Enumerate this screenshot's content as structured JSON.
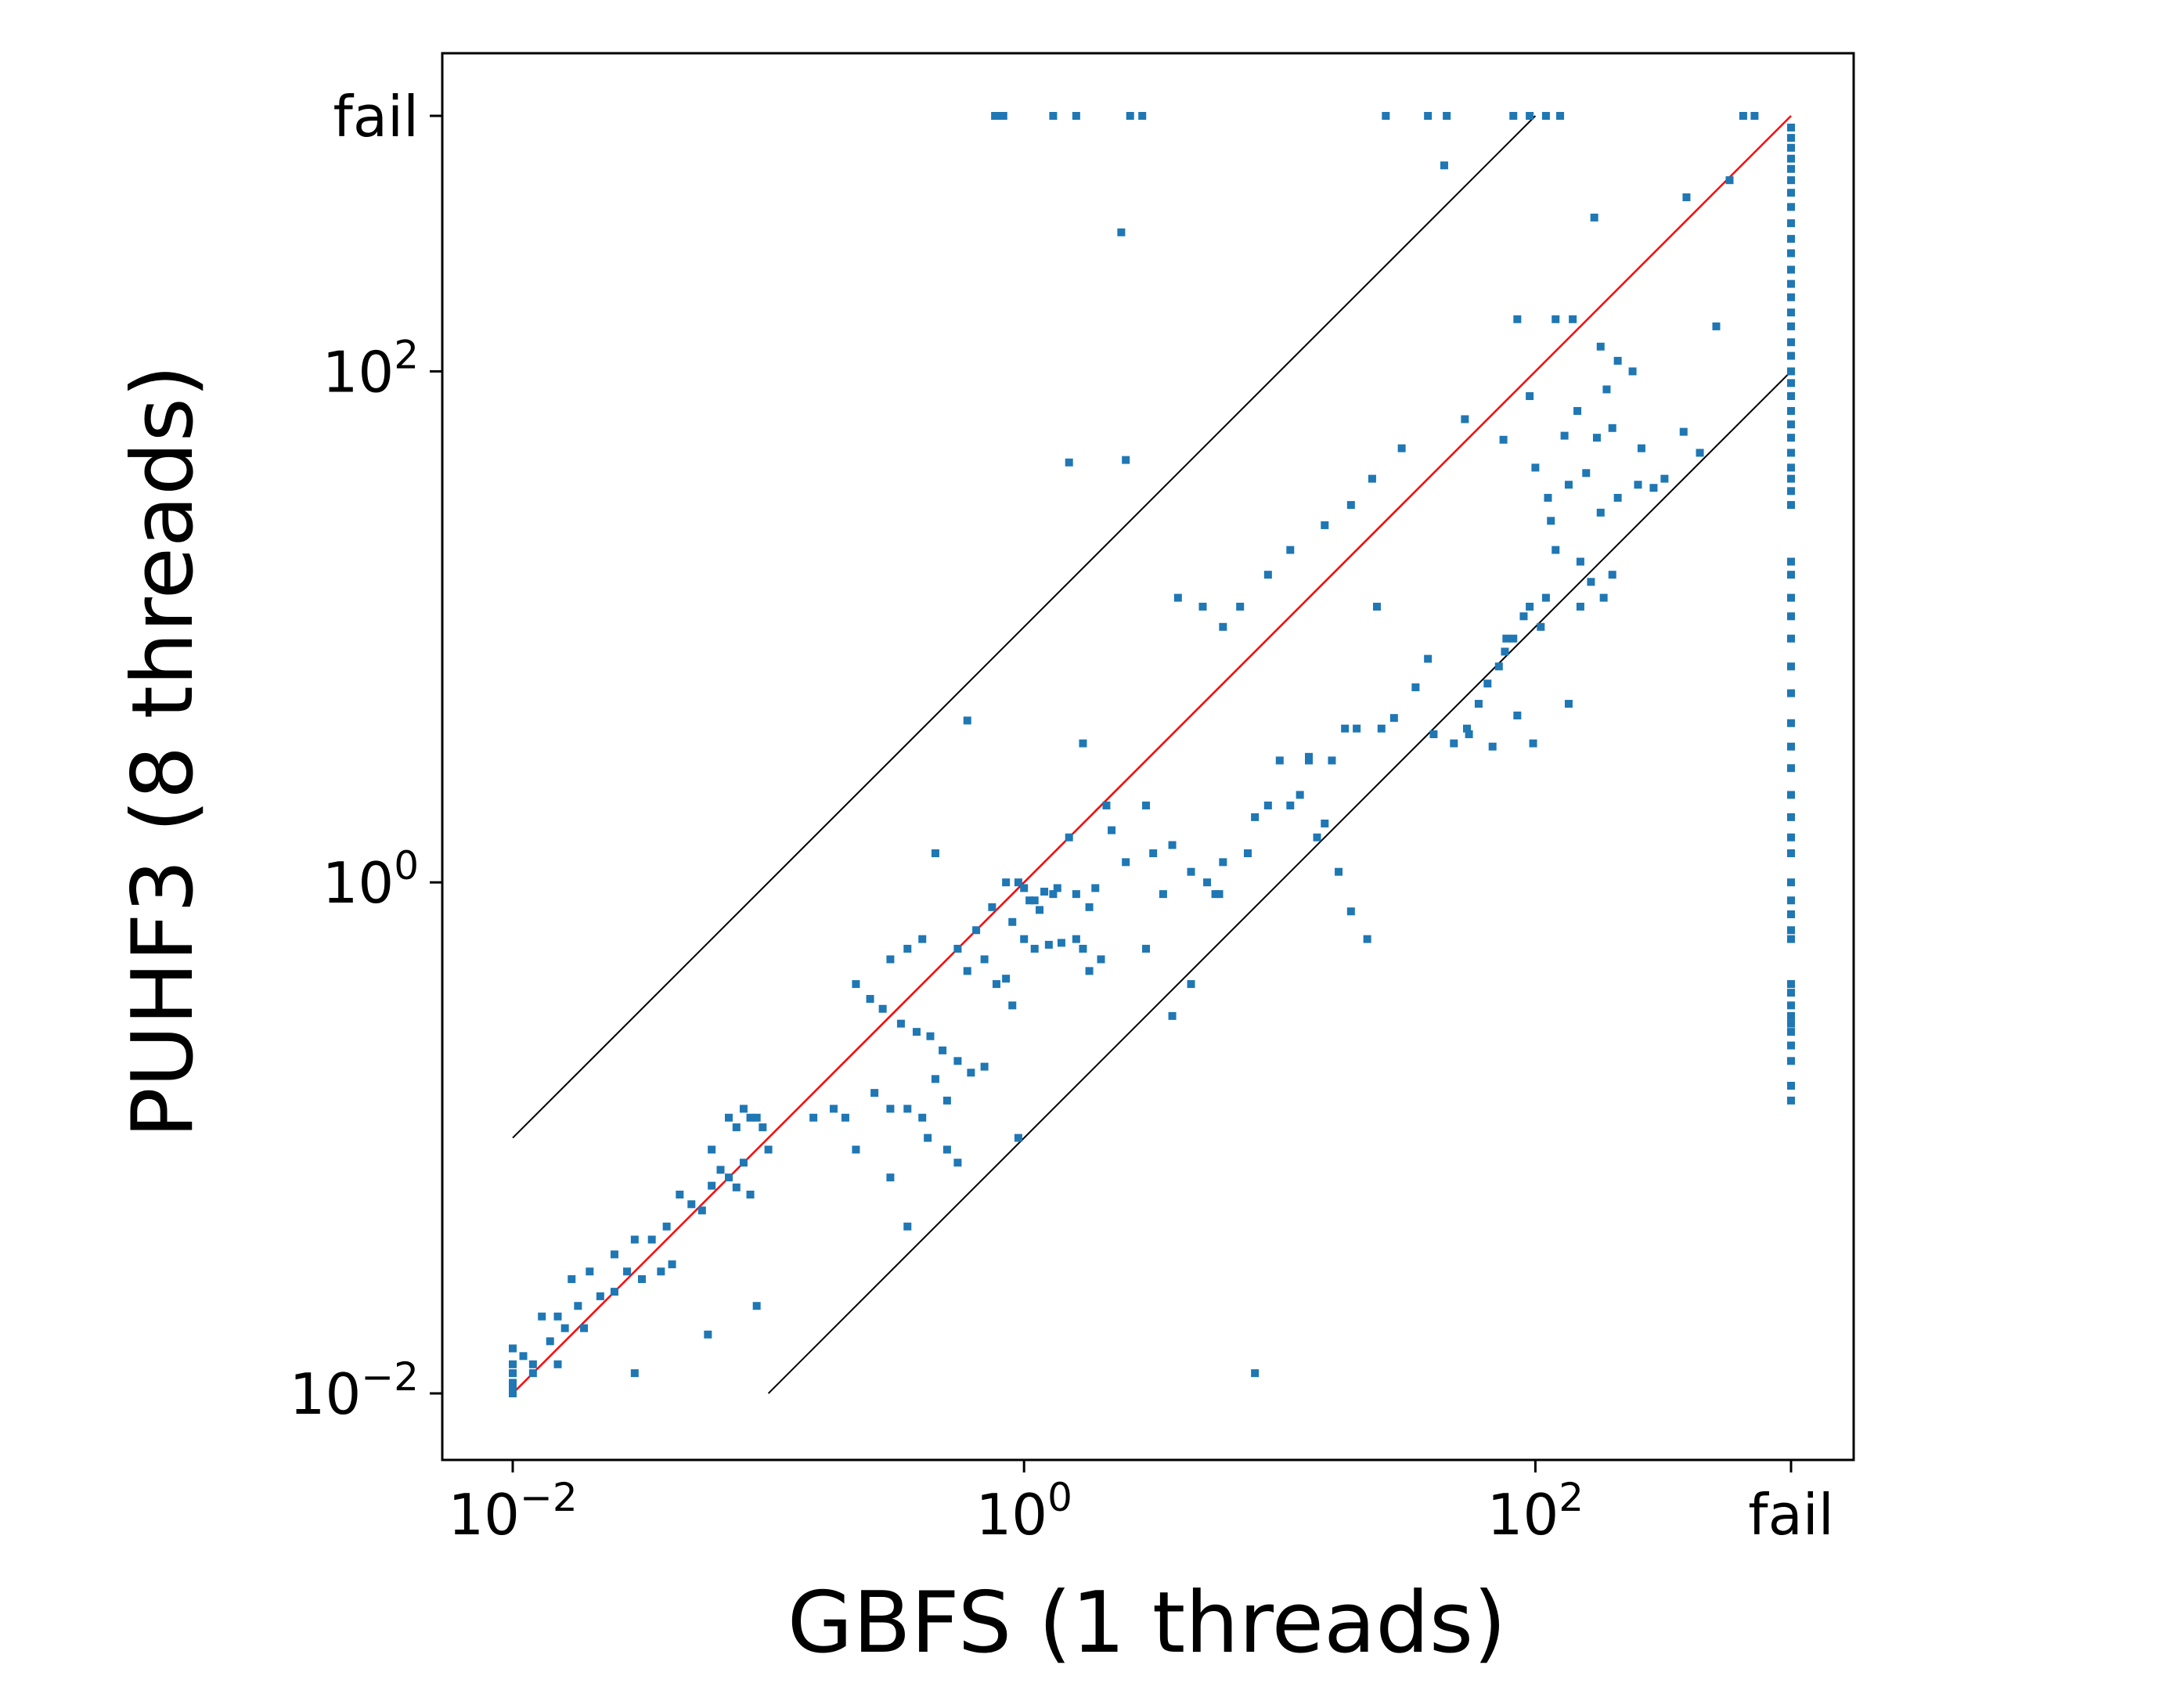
{
  "chart_data": {
    "type": "scatter",
    "title": "",
    "xlabel": "GBFS (1 threads)",
    "ylabel": "PUHF3 (8 threads)",
    "x_scale": "log",
    "y_scale": "log",
    "xlim": [
      0.0055,
      3000
    ],
    "ylim": [
      0.0055,
      3000
    ],
    "fail_value": 1000,
    "x_ticks": [
      {
        "value": 0.01,
        "base": "10",
        "exp": "−2"
      },
      {
        "value": 1,
        "base": "10",
        "exp": "0"
      },
      {
        "value": 100,
        "base": "10",
        "exp": "2"
      },
      {
        "value": 1000,
        "text": "fail"
      }
    ],
    "y_ticks": [
      {
        "value": 0.01,
        "base": "10",
        "exp": "−2"
      },
      {
        "value": 1,
        "base": "10",
        "exp": "0"
      },
      {
        "value": 100,
        "base": "10",
        "exp": "2"
      },
      {
        "value": 1000,
        "text": "fail"
      }
    ],
    "reference_lines": [
      {
        "label": "",
        "color": "#ff0000",
        "points": [
          [
            0.01,
            0.01
          ],
          [
            1000,
            1000
          ]
        ]
      },
      {
        "label": "",
        "color": "#000000",
        "points": [
          [
            0.01,
            0.1
          ],
          [
            100,
            1000
          ]
        ]
      },
      {
        "label": "",
        "color": "#000000",
        "points": [
          [
            0.1,
            0.01
          ],
          [
            1000,
            100
          ]
        ]
      }
    ],
    "series": [
      {
        "color": "#1f77b4",
        "points": [
          [
            0.77,
            1000
          ],
          [
            0.8,
            1000
          ],
          [
            0.83,
            1000
          ],
          [
            1.3,
            1000
          ],
          [
            1.6,
            1000
          ],
          [
            2.6,
            1000
          ],
          [
            2.9,
            1000
          ],
          [
            26,
            1000
          ],
          [
            38,
            1000
          ],
          [
            45,
            1000
          ],
          [
            82,
            1000
          ],
          [
            95,
            1000
          ],
          [
            110,
            1000
          ],
          [
            125,
            1000
          ],
          [
            650,
            1000
          ],
          [
            720,
            1000
          ],
          [
            2.4,
            350
          ],
          [
            44,
            640
          ],
          [
            170,
            400
          ],
          [
            390,
            480
          ],
          [
            575,
            560
          ],
          [
            1.5,
            44
          ],
          [
            2.5,
            45
          ],
          [
            85,
            160
          ],
          [
            140,
            160
          ],
          [
            120,
            160
          ],
          [
            180,
            125
          ],
          [
            210,
            110
          ],
          [
            190,
            85
          ],
          [
            240,
            100
          ],
          [
            510,
            150
          ],
          [
            53,
            65
          ],
          [
            30,
            50
          ],
          [
            23,
            38
          ],
          [
            19,
            30
          ],
          [
            15,
            25
          ],
          [
            11,
            20
          ],
          [
            9,
            16
          ],
          [
            7,
            12
          ],
          [
            6,
            10
          ],
          [
            75,
            54
          ],
          [
            100,
            42
          ],
          [
            112,
            32
          ],
          [
            115,
            26
          ],
          [
            135,
            36
          ],
          [
            158,
            40
          ],
          [
            180,
            28
          ],
          [
            210,
            32
          ],
          [
            252,
            36
          ],
          [
            290,
            35
          ],
          [
            95,
            80
          ],
          [
            130,
            56
          ],
          [
            146,
            70
          ],
          [
            174,
            55
          ],
          [
            200,
            60
          ],
          [
            260,
            50
          ],
          [
            320,
            38
          ],
          [
            380,
            58
          ],
          [
            440,
            48
          ],
          [
            165,
            15
          ],
          [
            120,
            20
          ],
          [
            150,
            18
          ],
          [
            110,
            13
          ],
          [
            95,
            12
          ],
          [
            82,
            9
          ],
          [
            76,
            8
          ],
          [
            72,
            7
          ],
          [
            65,
            6
          ],
          [
            60,
            5
          ],
          [
            54,
            4
          ],
          [
            200,
            16
          ],
          [
            185,
            13
          ],
          [
            150,
            12
          ],
          [
            105,
            10
          ],
          [
            90,
            11
          ],
          [
            77,
            9
          ],
          [
            135,
            5
          ],
          [
            20,
            4
          ],
          [
            16,
            3
          ],
          [
            38,
            7.5
          ],
          [
            34,
            5.8
          ],
          [
            28,
            4.4
          ],
          [
            25,
            4
          ],
          [
            40,
            3.8
          ],
          [
            48,
            3.5
          ],
          [
            55,
            3.8
          ],
          [
            68,
            3.4
          ],
          [
            85,
            4.5
          ],
          [
            98,
            3.5
          ],
          [
            4.0,
            13
          ],
          [
            5.0,
            12
          ],
          [
            24,
            12
          ],
          [
            18,
            4
          ],
          [
            13,
            3
          ],
          [
            9,
            2
          ],
          [
            8,
            1.8
          ],
          [
            7.5,
            1.3
          ],
          [
            6,
            1.2
          ],
          [
            5.6,
            0.9
          ],
          [
            13,
            3.1
          ],
          [
            11,
            2
          ],
          [
            10,
            3
          ],
          [
            12,
            2.2
          ],
          [
            14,
            1.5
          ],
          [
            15,
            1.7
          ],
          [
            17,
            1.1
          ],
          [
            19,
            0.77
          ],
          [
            22,
            0.6
          ],
          [
            2.1,
            2
          ],
          [
            3,
            2
          ],
          [
            2.2,
            1.6
          ],
          [
            2.5,
            1.2
          ],
          [
            3.2,
            1.3
          ],
          [
            3.8,
            1.4
          ],
          [
            4.5,
            1.1
          ],
          [
            5.2,
            1.0
          ],
          [
            5.8,
            0.9
          ],
          [
            1.5,
            1.5
          ],
          [
            1.9,
            0.95
          ],
          [
            1.6,
            0.9
          ],
          [
            1.3,
            0.9
          ],
          [
            1.05,
            0.85
          ],
          [
            1.2,
            0.92
          ],
          [
            1.35,
            0.95
          ],
          [
            1.8,
            0.8
          ],
          [
            1.7,
            3.5
          ],
          [
            0.6,
            4.3
          ],
          [
            0.45,
            1.3
          ],
          [
            0.85,
            1.0
          ],
          [
            0.95,
            1.0
          ],
          [
            1.0,
            0.95
          ],
          [
            1.1,
            0.85
          ],
          [
            1.15,
            0.78
          ],
          [
            0.9,
            0.7
          ],
          [
            1.0,
            0.6
          ],
          [
            1.1,
            0.55
          ],
          [
            1.25,
            0.57
          ],
          [
            1.4,
            0.58
          ],
          [
            1.6,
            0.6
          ],
          [
            1.8,
            0.45
          ],
          [
            2.0,
            0.5
          ],
          [
            0.75,
            0.8
          ],
          [
            0.65,
            0.65
          ],
          [
            0.55,
            0.55
          ],
          [
            0.6,
            0.45
          ],
          [
            0.7,
            0.5
          ],
          [
            0.78,
            0.4
          ],
          [
            0.85,
            0.42
          ],
          [
            0.9,
            0.33
          ],
          [
            0.4,
            0.6
          ],
          [
            0.35,
            0.55
          ],
          [
            0.3,
            0.5
          ],
          [
            0.25,
            0.35
          ],
          [
            0.22,
            0.4
          ],
          [
            0.28,
            0.32
          ],
          [
            0.33,
            0.28
          ],
          [
            0.38,
            0.26
          ],
          [
            0.43,
            0.25
          ],
          [
            0.48,
            0.22
          ],
          [
            0.55,
            0.2
          ],
          [
            0.62,
            0.18
          ],
          [
            0.7,
            0.19
          ],
          [
            0.5,
            0.14
          ],
          [
            0.45,
            0.17
          ],
          [
            0.26,
            0.15
          ],
          [
            0.3,
            0.13
          ],
          [
            0.35,
            0.13
          ],
          [
            0.4,
            0.12
          ],
          [
            0.42,
            0.1
          ],
          [
            0.2,
            0.12
          ],
          [
            0.15,
            0.12
          ],
          [
            0.18,
            0.13
          ],
          [
            0.22,
            0.09
          ],
          [
            0.3,
            0.07
          ],
          [
            0.35,
            0.045
          ],
          [
            0.5,
            0.09
          ],
          [
            0.55,
            0.08
          ],
          [
            0.07,
            0.12
          ],
          [
            0.075,
            0.11
          ],
          [
            0.08,
            0.13
          ],
          [
            0.085,
            0.12
          ],
          [
            0.09,
            0.12
          ],
          [
            0.095,
            0.11
          ],
          [
            0.1,
            0.09
          ],
          [
            0.06,
            0.09
          ],
          [
            0.065,
            0.075
          ],
          [
            0.07,
            0.07
          ],
          [
            0.075,
            0.064
          ],
          [
            0.08,
            0.08
          ],
          [
            0.085,
            0.06
          ],
          [
            0.045,
            0.06
          ],
          [
            0.05,
            0.055
          ],
          [
            0.055,
            0.052
          ],
          [
            0.06,
            0.065
          ],
          [
            0.04,
            0.045
          ],
          [
            0.035,
            0.04
          ],
          [
            0.03,
            0.04
          ],
          [
            0.025,
            0.035
          ],
          [
            0.028,
            0.03
          ],
          [
            0.032,
            0.028
          ],
          [
            0.038,
            0.03
          ],
          [
            0.042,
            0.032
          ],
          [
            0.02,
            0.03
          ],
          [
            0.017,
            0.028
          ],
          [
            0.015,
            0.02
          ],
          [
            0.018,
            0.022
          ],
          [
            0.022,
            0.024
          ],
          [
            0.025,
            0.025
          ],
          [
            0.013,
            0.02
          ],
          [
            0.014,
            0.016
          ],
          [
            0.016,
            0.018
          ],
          [
            0.019,
            0.018
          ],
          [
            0.058,
            0.017
          ],
          [
            0.09,
            0.022
          ],
          [
            0.012,
            0.012
          ],
          [
            0.011,
            0.014
          ],
          [
            0.01,
            0.01
          ],
          [
            0.01,
            0.011
          ],
          [
            0.01,
            0.012
          ],
          [
            0.01,
            0.013
          ],
          [
            0.01,
            0.015
          ],
          [
            0.01,
            0.0105
          ],
          [
            0.012,
            0.013
          ],
          [
            0.015,
            0.013
          ],
          [
            0.03,
            0.012
          ],
          [
            8,
            0.012
          ],
          [
            3.5,
            0.9
          ],
          [
            0.95,
            0.1
          ],
          [
            4.5,
            0.4
          ],
          [
            3.8,
            0.3
          ],
          [
            3.0,
            0.55
          ],
          [
            1.7,
            0.55
          ],
          [
            1000,
            0.14
          ],
          [
            1000,
            0.16
          ],
          [
            1000,
            0.2
          ],
          [
            1000,
            0.23
          ],
          [
            1000,
            0.26
          ],
          [
            1000,
            0.28
          ],
          [
            1000,
            0.3
          ],
          [
            1000,
            0.33
          ],
          [
            1000,
            0.37
          ],
          [
            1000,
            0.4
          ],
          [
            1000,
            0.6
          ],
          [
            1000,
            0.65
          ],
          [
            1000,
            0.75
          ],
          [
            1000,
            0.85
          ],
          [
            1000,
            1.0
          ],
          [
            1000,
            1.3
          ],
          [
            1000,
            1.5
          ],
          [
            1000,
            1.8
          ],
          [
            1000,
            2.2
          ],
          [
            1000,
            2.8
          ],
          [
            1000,
            3.4
          ],
          [
            1000,
            4.2
          ],
          [
            1000,
            5.5
          ],
          [
            1000,
            7.0
          ],
          [
            1000,
            9.0
          ],
          [
            1000,
            11
          ],
          [
            1000,
            13
          ],
          [
            1000,
            16
          ],
          [
            1000,
            18
          ],
          [
            1000,
            30
          ],
          [
            1000,
            34
          ],
          [
            1000,
            38
          ],
          [
            1000,
            42
          ],
          [
            1000,
            48
          ],
          [
            1000,
            55
          ],
          [
            1000,
            62
          ],
          [
            1000,
            70
          ],
          [
            1000,
            80
          ],
          [
            1000,
            90
          ],
          [
            1000,
            100
          ],
          [
            1000,
            115
          ],
          [
            1000,
            130
          ],
          [
            1000,
            150
          ],
          [
            1000,
            170
          ],
          [
            1000,
            195
          ],
          [
            1000,
            220
          ],
          [
            1000,
            250
          ],
          [
            1000,
            290
          ],
          [
            1000,
            330
          ],
          [
            1000,
            380
          ],
          [
            1000,
            440
          ],
          [
            1000,
            500
          ],
          [
            1000,
            560
          ],
          [
            1000,
            620
          ],
          [
            1000,
            680
          ],
          [
            1000,
            750
          ],
          [
            1000,
            820
          ],
          [
            1000,
            900
          ]
        ]
      }
    ]
  }
}
